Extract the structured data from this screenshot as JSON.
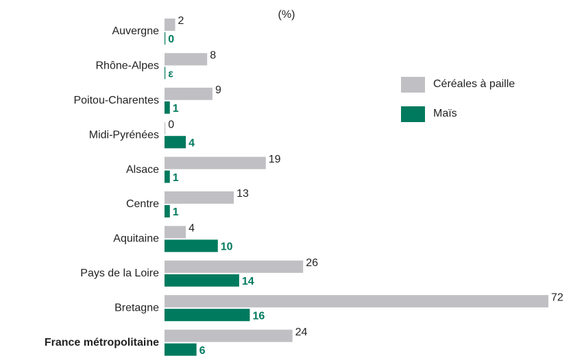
{
  "chart_data": {
    "type": "bar",
    "orientation": "horizontal",
    "subtitle": "(%)",
    "categories": [
      "Auvergne",
      "Rhône-Alpes",
      "Poitou-Charentes",
      "Midi-Pyrénées",
      "Alsace",
      "Centre",
      "Aquitaine",
      "Pays de la Loire",
      "Bretagne",
      "France métropolitaine"
    ],
    "series": [
      {
        "name": "Céréales à paille",
        "color": "#c0c0c4",
        "values": [
          2,
          8,
          9,
          0,
          19,
          13,
          4,
          26,
          72,
          24
        ]
      },
      {
        "name": "Maïs",
        "color": "#007a5e",
        "values": [
          0,
          0,
          1,
          4,
          1,
          1,
          10,
          14,
          16,
          6
        ],
        "value_labels": [
          "0",
          "ε",
          "1",
          "4",
          "1",
          "1",
          "10",
          "14",
          "16",
          "6"
        ]
      }
    ],
    "legend": "right"
  }
}
